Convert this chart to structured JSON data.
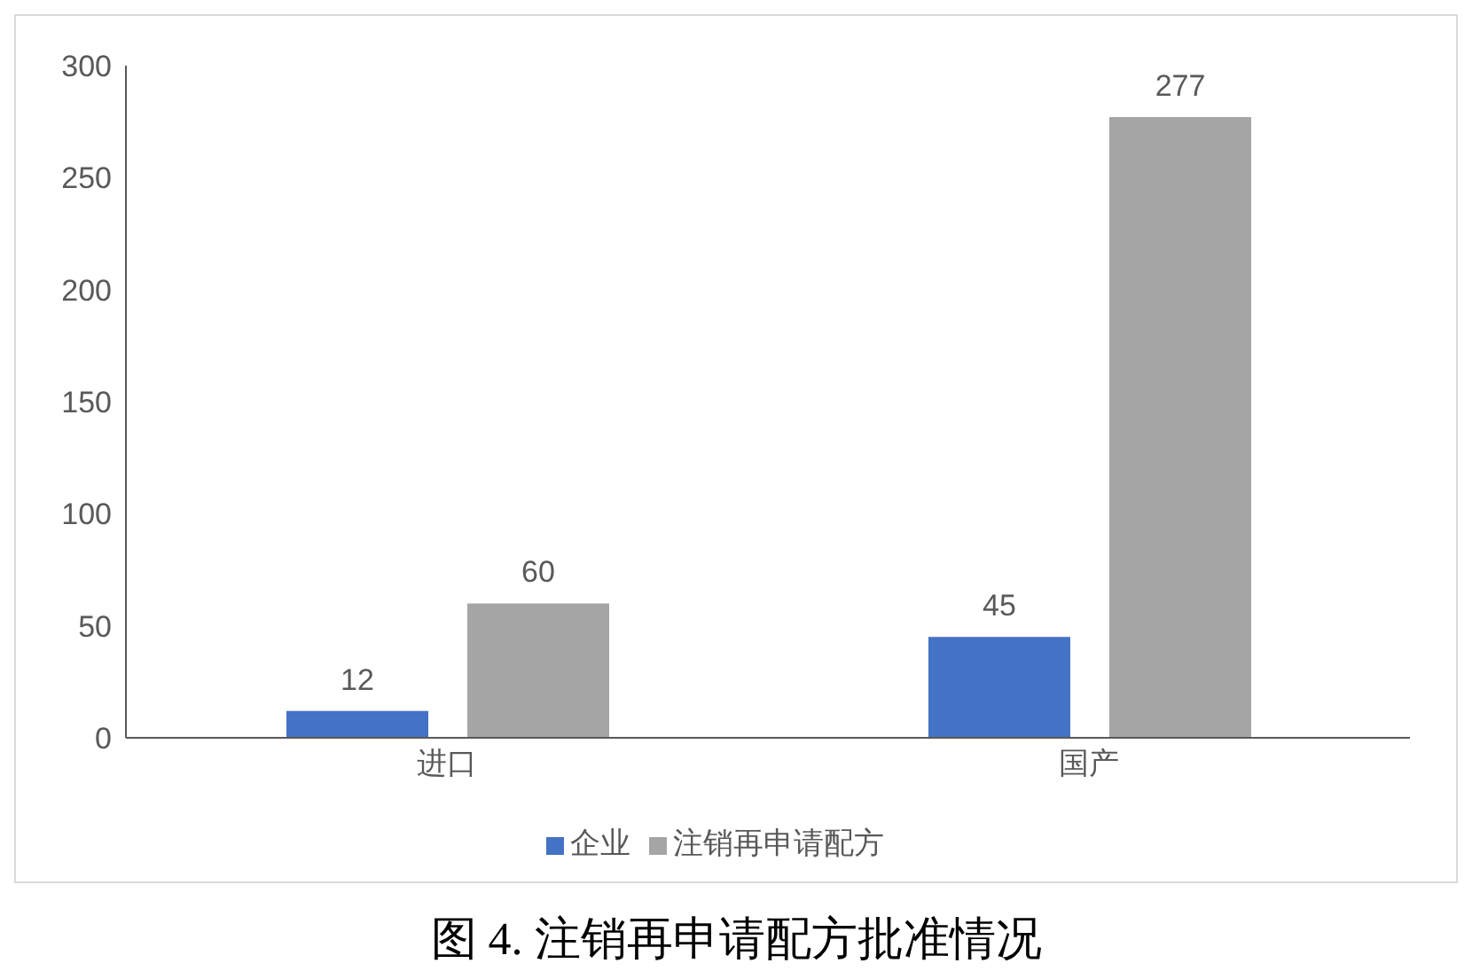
{
  "chart_data": {
    "type": "bar",
    "title": "图 4.  注销再申请配方批准情况",
    "categories": [
      "进口",
      "国产"
    ],
    "series": [
      {
        "name": "企业",
        "color": "#4472c4",
        "values": [
          12,
          45
        ]
      },
      {
        "name": "注销再申请配方",
        "color": "#a5a5a5",
        "values": [
          60,
          277
        ]
      }
    ],
    "ylim": [
      0,
      300
    ],
    "yticks": [
      0,
      50,
      100,
      150,
      200,
      250,
      300
    ],
    "data_labels": true,
    "legend": "bottom"
  }
}
